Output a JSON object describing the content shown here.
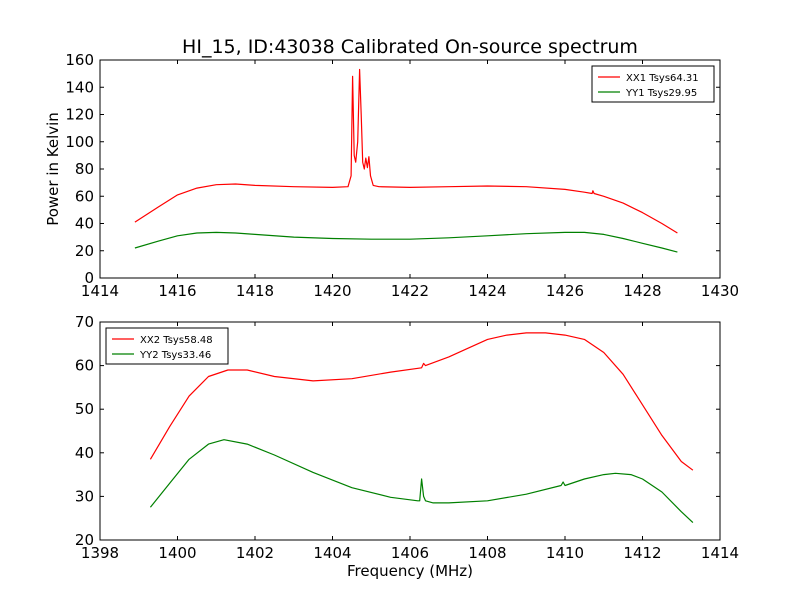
{
  "chart_data": [
    {
      "type": "line",
      "title": "HI_15, ID:43038 Calibrated On-source spectrum",
      "xlabel": "",
      "ylabel": "Power in Kelvin",
      "xlim": [
        1414,
        1430
      ],
      "ylim": [
        0,
        160
      ],
      "xticks": [
        "1414",
        "1416",
        "1418",
        "1420",
        "1422",
        "1424",
        "1426",
        "1428",
        "1430"
      ],
      "yticks": [
        "0",
        "20",
        "40",
        "60",
        "80",
        "100",
        "120",
        "140",
        "160"
      ],
      "grid": false,
      "legend": "top-right",
      "series": [
        {
          "name": "XX1 Tsys64.31",
          "color": "#ff0000",
          "x": [
            1414.9,
            1415.5,
            1416.0,
            1416.5,
            1417.0,
            1417.5,
            1418.0,
            1419.0,
            1420.0,
            1420.4,
            1420.48,
            1420.52,
            1420.56,
            1420.6,
            1420.65,
            1420.7,
            1420.74,
            1420.78,
            1420.82,
            1420.86,
            1420.9,
            1420.94,
            1420.98,
            1421.05,
            1421.2,
            1422.0,
            1423.0,
            1424.0,
            1425.0,
            1426.0,
            1426.5,
            1426.7,
            1426.72,
            1426.75,
            1427.0,
            1427.5,
            1428.0,
            1428.5,
            1428.9
          ],
          "values": [
            41,
            52,
            61,
            66,
            68.5,
            69,
            68,
            67,
            66.5,
            67,
            75,
            148,
            90,
            85,
            100,
            153,
            120,
            85,
            80,
            88,
            81,
            89,
            75,
            68,
            67,
            66.5,
            67,
            67.5,
            67,
            65,
            63,
            62,
            64,
            62,
            60,
            55,
            48,
            40,
            33
          ]
        },
        {
          "name": "YY1 Tsys29.95",
          "color": "#008000",
          "x": [
            1414.9,
            1415.5,
            1416.0,
            1416.5,
            1417.0,
            1417.5,
            1418.0,
            1419.0,
            1420.0,
            1421.0,
            1422.0,
            1423.0,
            1424.0,
            1425.0,
            1426.0,
            1426.5,
            1427.0,
            1427.5,
            1428.0,
            1428.5,
            1428.9
          ],
          "values": [
            22,
            27,
            31,
            33,
            33.5,
            33,
            32,
            30,
            29,
            28.5,
            28.5,
            29.5,
            31,
            32.5,
            33.5,
            33.5,
            32,
            29,
            25.5,
            22,
            19
          ]
        }
      ]
    },
    {
      "type": "line",
      "title": "",
      "xlabel": "Frequency (MHz)",
      "ylabel": "",
      "xlim": [
        1398,
        1414
      ],
      "ylim": [
        20,
        70
      ],
      "xticks": [
        "1398",
        "1400",
        "1402",
        "1404",
        "1406",
        "1408",
        "1410",
        "1412",
        "1414"
      ],
      "yticks": [
        "20",
        "30",
        "40",
        "50",
        "60",
        "70"
      ],
      "grid": false,
      "legend": "top-left",
      "series": [
        {
          "name": "XX2 Tsys58.48",
          "color": "#ff0000",
          "x": [
            1399.3,
            1399.8,
            1400.3,
            1400.8,
            1401.3,
            1401.8,
            1402.5,
            1403.5,
            1404.5,
            1405.5,
            1406.3,
            1406.35,
            1406.4,
            1407.0,
            1407.5,
            1408.0,
            1408.5,
            1409.0,
            1409.5,
            1410.0,
            1410.5,
            1411.0,
            1411.5,
            1412.0,
            1412.5,
            1413.0,
            1413.3
          ],
          "values": [
            38.5,
            46,
            53,
            57.5,
            59,
            59,
            57.5,
            56.5,
            57,
            58.5,
            59.5,
            60.5,
            60,
            62,
            64,
            66,
            67,
            67.5,
            67.5,
            67,
            66,
            63,
            58,
            51,
            44,
            38,
            36
          ]
        },
        {
          "name": "YY2 Tsys33.46",
          "color": "#008000",
          "x": [
            1399.3,
            1399.8,
            1400.3,
            1400.8,
            1401.2,
            1401.8,
            1402.5,
            1403.5,
            1404.5,
            1405.5,
            1406.2,
            1406.25,
            1406.3,
            1406.35,
            1406.4,
            1406.6,
            1407.0,
            1408.0,
            1409.0,
            1409.9,
            1409.95,
            1410.0,
            1410.5,
            1411.0,
            1411.3,
            1411.7,
            1412.0,
            1412.5,
            1413.0,
            1413.3
          ],
          "values": [
            27.5,
            33,
            38.5,
            42,
            43,
            42,
            39.5,
            35.5,
            32,
            29.8,
            29,
            29,
            34,
            30,
            29,
            28.5,
            28.5,
            29,
            30.5,
            32.5,
            33.3,
            32.5,
            34,
            35,
            35.3,
            35,
            34,
            31,
            26.5,
            24
          ]
        }
      ]
    }
  ]
}
